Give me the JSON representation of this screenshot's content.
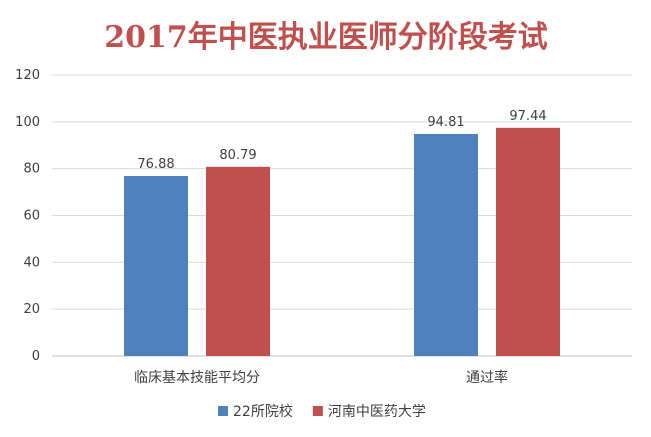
{
  "chart_data": {
    "type": "bar",
    "title": "2017年中医执业医师分阶段考试",
    "categories": [
      "临床基本技能平均分",
      "通过率"
    ],
    "series": [
      {
        "name": "22所院校",
        "values": [
          76.88,
          94.81
        ],
        "color": "#4f81bd"
      },
      {
        "name": "河南中医药大学",
        "values": [
          80.79,
          97.44
        ],
        "color": "#c0504d"
      }
    ],
    "data_labels": [
      [
        "76.88",
        "94.81"
      ],
      [
        "80.79",
        "97.44"
      ]
    ],
    "ylim": [
      0,
      120
    ],
    "yticks": [
      0,
      20,
      40,
      60,
      80,
      100,
      120
    ],
    "grid": true,
    "legend_position": "bottom",
    "xlabel": "",
    "ylabel": ""
  }
}
